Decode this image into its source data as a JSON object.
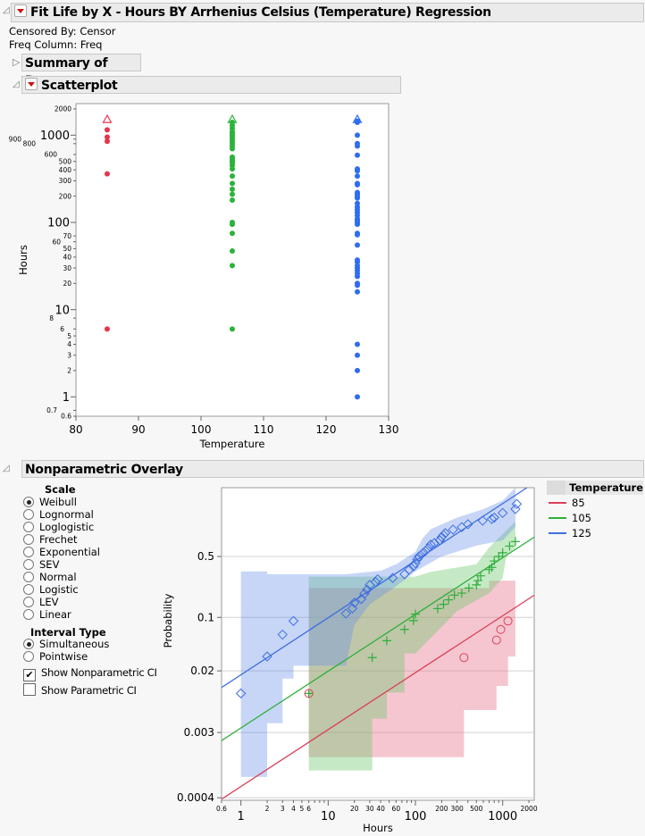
{
  "report": {
    "title": "Fit Life by X - Hours BY Arrhenius Celsius (Temperature) Regression",
    "censored_by": "Censored By: Censor",
    "freq_column": "Freq Column: Freq",
    "summary_title": "Summary of Data",
    "scatter_title": "Scatterplot",
    "overlay_title": "Nonparametric Overlay"
  },
  "controls": {
    "scale_label": "Scale",
    "scales": [
      "Weibull",
      "Lognormal",
      "Loglogistic",
      "Frechet",
      "Exponential",
      "SEV",
      "Normal",
      "Logistic",
      "LEV",
      "Linear"
    ],
    "scale_selected": "Weibull",
    "interval_label": "Interval Type",
    "intervals": [
      "Simultaneous",
      "Pointwise"
    ],
    "interval_selected": "Simultaneous",
    "show_nonparametric_ci": {
      "label": "Show Nonparametric CI",
      "checked": true
    },
    "show_parametric_ci": {
      "label": "Show Parametric CI",
      "checked": false
    }
  },
  "legend": {
    "title": "Temperature",
    "items": [
      {
        "label": "85",
        "color": "#d9415a"
      },
      {
        "label": "105",
        "color": "#2fae3a"
      },
      {
        "label": "125",
        "color": "#3f6fe0"
      }
    ]
  },
  "chart_data": [
    {
      "type": "scatter",
      "xlabel": "Temperature",
      "ylabel": "Hours",
      "xlim": [
        80,
        130
      ],
      "ylim": [
        0.6,
        2300
      ],
      "yscale": "log",
      "xticks": [
        80,
        90,
        100,
        110,
        120,
        130
      ],
      "yticks_major": [
        1,
        10,
        100,
        1000
      ],
      "yticks_minor": [
        0.6,
        0.7,
        2,
        3,
        4,
        5,
        6,
        8,
        20,
        30,
        40,
        50,
        60,
        70,
        200,
        300,
        400,
        500,
        600,
        800,
        900,
        2000
      ],
      "series": [
        {
          "temperature": 85,
          "color": "#e8344d",
          "failures": [
            6,
            360,
            850,
            950,
            1150
          ],
          "censored": [
            1500
          ]
        },
        {
          "temperature": 105,
          "color": "#2bb33a",
          "failures": [
            6,
            32,
            47,
            75,
            95,
            100,
            180,
            210,
            240,
            280,
            340,
            410,
            450,
            480,
            500,
            520,
            540,
            560,
            700,
            750,
            800,
            850,
            900,
            950,
            1000,
            1050,
            1100,
            1200,
            1300,
            1400
          ],
          "censored": [
            1500
          ]
        },
        {
          "temperature": 125,
          "color": "#2f6df0",
          "failures": [
            1,
            2,
            3,
            4,
            16,
            19,
            20,
            24,
            26,
            28,
            30,
            32,
            35,
            37,
            55,
            72,
            75,
            95,
            100,
            105,
            110,
            120,
            130,
            140,
            150,
            165,
            190,
            200,
            210,
            220,
            270,
            280,
            340,
            390,
            410,
            590,
            750,
            800,
            1000,
            1400,
            1450
          ],
          "censored": [
            1500
          ]
        }
      ]
    },
    {
      "type": "line",
      "xlabel": "Hours",
      "ylabel": "Probability",
      "xscale": "log",
      "yscale": "weibull",
      "xlim": [
        0.6,
        2300
      ],
      "ylim": [
        0.00037,
        0.997
      ],
      "xticks_major": [
        1,
        10,
        100,
        1000
      ],
      "xticks_labeled_minor": [
        0.6,
        2,
        3,
        4,
        5,
        6,
        20,
        30,
        40,
        60,
        200,
        300,
        500,
        2000
      ],
      "yticks": [
        0.5,
        0.1,
        0.02,
        0.003,
        0.0004
      ],
      "grid": true,
      "series": [
        {
          "name": "85",
          "color": "#d9415a",
          "marker": "circle",
          "points": [
            [
              6,
              0.01
            ],
            [
              360,
              0.03
            ],
            [
              850,
              0.051
            ],
            [
              950,
              0.07
            ],
            [
              1150,
              0.09
            ]
          ],
          "fit": [
            [
              0.6,
              0.000383
            ],
            [
              2300,
              0.189
            ]
          ],
          "band": [
            [
              6,
              0.23
            ],
            [
              700,
              0.23
            ],
            [
              700,
              0.28
            ],
            [
              1400,
              0.28
            ],
            [
              1400,
              0.031
            ],
            [
              1150,
              0.031
            ],
            [
              1150,
              0.0126
            ],
            [
              850,
              0.0126
            ],
            [
              850,
              0.006
            ],
            [
              360,
              0.006
            ],
            [
              360,
              0.0014
            ],
            [
              6,
              0.0014
            ]
          ],
          "band_color": "rgba(232,120,140,0.42)"
        },
        {
          "name": "105",
          "color": "#2fae3a",
          "marker": "cross",
          "points": [
            [
              6,
              0.01
            ],
            [
              32,
              0.03
            ],
            [
              47,
              0.05
            ],
            [
              75,
              0.07
            ],
            [
              95,
              0.091
            ],
            [
              100,
              0.11
            ],
            [
              180,
              0.129
            ],
            [
              210,
              0.146
            ],
            [
              240,
              0.166
            ],
            [
              280,
              0.189
            ],
            [
              340,
              0.2
            ],
            [
              410,
              0.23
            ],
            [
              500,
              0.25
            ],
            [
              520,
              0.28
            ],
            [
              560,
              0.317
            ],
            [
              700,
              0.37
            ],
            [
              750,
              0.39
            ],
            [
              800,
              0.453
            ],
            [
              900,
              0.5
            ],
            [
              1000,
              0.54
            ],
            [
              1200,
              0.615
            ],
            [
              1400,
              0.666
            ]
          ],
          "fit": [
            [
              0.6,
              0.00234
            ],
            [
              2300,
              0.716
            ]
          ],
          "band": [
            [
              6,
              0.31
            ],
            [
              100,
              0.31
            ],
            [
              150,
              0.35
            ],
            [
              500,
              0.42
            ],
            [
              700,
              0.6
            ],
            [
              1000,
              0.75
            ],
            [
              1400,
              0.87
            ],
            [
              1400,
              0.6
            ],
            [
              1100,
              0.5
            ],
            [
              1000,
              0.3
            ],
            [
              700,
              0.2
            ],
            [
              300,
              0.12
            ],
            [
              100,
              0.034
            ],
            [
              75,
              0.034
            ],
            [
              75,
              0.0103
            ],
            [
              47,
              0.0103
            ],
            [
              47,
              0.0046
            ],
            [
              32,
              0.0046
            ],
            [
              32,
              0.00093
            ],
            [
              6,
              0.00093
            ]
          ],
          "band_color": "rgba(110,200,110,0.40)"
        },
        {
          "name": "125",
          "color": "#3f6fe0",
          "marker": "diamond",
          "points": [
            [
              1,
              0.01
            ],
            [
              2,
              0.031
            ],
            [
              3,
              0.06
            ],
            [
              4,
              0.09
            ],
            [
              16,
              0.112
            ],
            [
              19,
              0.13
            ],
            [
              20,
              0.153
            ],
            [
              24,
              0.17
            ],
            [
              26,
              0.197
            ],
            [
              28,
              0.22
            ],
            [
              30,
              0.25
            ],
            [
              35,
              0.27
            ],
            [
              37,
              0.29
            ],
            [
              55,
              0.3
            ],
            [
              75,
              0.33
            ],
            [
              85,
              0.37
            ],
            [
              95,
              0.4
            ],
            [
              100,
              0.43
            ],
            [
              105,
              0.47
            ],
            [
              110,
              0.5
            ],
            [
              120,
              0.53
            ],
            [
              130,
              0.56
            ],
            [
              140,
              0.59
            ],
            [
              150,
              0.632
            ],
            [
              165,
              0.65
            ],
            [
              190,
              0.68
            ],
            [
              200,
              0.716
            ],
            [
              210,
              0.74
            ],
            [
              220,
              0.76
            ],
            [
              270,
              0.796
            ],
            [
              340,
              0.82
            ],
            [
              400,
              0.847
            ],
            [
              590,
              0.877
            ],
            [
              750,
              0.89
            ],
            [
              800,
              0.9
            ],
            [
              1000,
              0.93
            ],
            [
              1400,
              0.95
            ],
            [
              1450,
              0.97
            ]
          ],
          "fit": [
            [
              0.6,
              0.012
            ],
            [
              1900,
              0.997
            ]
          ],
          "band": [
            [
              1,
              0.354
            ],
            [
              2,
              0.354
            ],
            [
              2,
              0.33
            ],
            [
              16,
              0.33
            ],
            [
              40,
              0.36
            ],
            [
              60,
              0.42
            ],
            [
              100,
              0.55
            ],
            [
              120,
              0.7
            ],
            [
              150,
              0.8
            ],
            [
              300,
              0.9
            ],
            [
              600,
              0.95
            ],
            [
              1000,
              0.98
            ],
            [
              1400,
              0.997
            ],
            [
              1400,
              0.824
            ],
            [
              1000,
              0.68
            ],
            [
              500,
              0.62
            ],
            [
              200,
              0.5
            ],
            [
              100,
              0.354
            ],
            [
              60,
              0.241
            ],
            [
              30,
              0.146
            ],
            [
              20,
              0.08
            ],
            [
              16,
              0.0234
            ],
            [
              4,
              0.0234
            ],
            [
              4,
              0.0158
            ],
            [
              3,
              0.0158
            ],
            [
              3,
              0.004
            ],
            [
              2,
              0.004
            ],
            [
              2,
              0.00076
            ],
            [
              1,
              0.00076
            ]
          ],
          "band_color": "rgba(100,140,232,0.36)"
        }
      ]
    }
  ]
}
